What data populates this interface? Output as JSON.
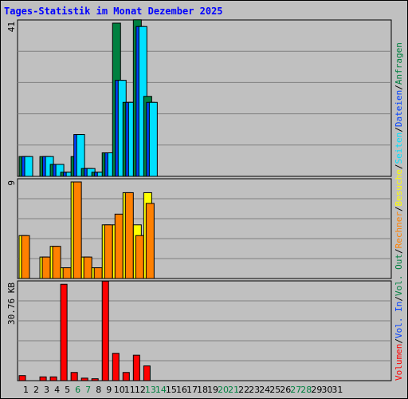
{
  "title": "Tages-Statistik im Monat Dezember 2025",
  "chart_data": [
    {
      "type": "bar",
      "panel": "anfragen-dateien-seiten",
      "ylabel": "41",
      "ymax": 41,
      "grid": true,
      "categories": [
        "1",
        "2",
        "3",
        "4",
        "5",
        "6",
        "7",
        "8",
        "9",
        "10",
        "11",
        "12",
        "13",
        "14",
        "15",
        "16",
        "17",
        "18",
        "19",
        "20",
        "21",
        "22",
        "23",
        "24",
        "25",
        "26",
        "27",
        "28",
        "29",
        "30",
        "31"
      ],
      "series": [
        {
          "name": "Anfragen",
          "color": "#008040",
          "values": [
            5.3,
            0,
            5.3,
            3.2,
            1.1,
            5.3,
            2.1,
            1.1,
            6.3,
            41,
            19.8,
            41.9,
            21.4,
            0,
            0,
            0,
            0,
            0,
            0,
            0,
            0,
            0,
            0,
            0,
            0,
            0,
            0,
            0,
            0,
            0,
            0
          ]
        },
        {
          "name": "Dateien",
          "color": "#0040ff",
          "values": [
            5.3,
            0,
            5.3,
            3.2,
            1.1,
            11.2,
            2.1,
            1.1,
            6.3,
            25.7,
            19.8,
            40.1,
            19.8,
            0,
            0,
            0,
            0,
            0,
            0,
            0,
            0,
            0,
            0,
            0,
            0,
            0,
            0,
            0,
            0,
            0,
            0
          ]
        },
        {
          "name": "Seiten",
          "color": "#00e0ff",
          "values": [
            5.3,
            0,
            5.3,
            3.2,
            1.1,
            11.2,
            2.1,
            1.1,
            6.3,
            25.7,
            19.8,
            40.1,
            19.8,
            0,
            0,
            0,
            0,
            0,
            0,
            0,
            0,
            0,
            0,
            0,
            0,
            0,
            0,
            0,
            0,
            0,
            0
          ]
        }
      ]
    },
    {
      "type": "bar",
      "panel": "besuche-rechner",
      "ylabel": "9",
      "ymax": 9,
      "grid": true,
      "series": [
        {
          "name": "Besuche",
          "color": "#ffff00",
          "values": [
            4,
            0,
            2,
            3,
            1,
            9,
            2,
            1,
            5,
            5,
            8,
            5,
            8,
            0,
            0,
            0,
            0,
            0,
            0,
            0,
            0,
            0,
            0,
            0,
            0,
            0,
            0,
            0,
            0,
            0,
            0
          ]
        },
        {
          "name": "Rechner",
          "color": "#ff8000",
          "values": [
            4,
            0,
            2,
            3,
            1,
            9,
            2,
            1,
            5,
            6,
            8,
            4,
            7,
            0,
            0,
            0,
            0,
            0,
            0,
            0,
            0,
            0,
            0,
            0,
            0,
            0,
            0,
            0,
            0,
            0,
            0
          ]
        }
      ]
    },
    {
      "type": "bar",
      "panel": "volumen",
      "ylabel": "30.76 KB",
      "ymax": 30.76,
      "grid": true,
      "series": [
        {
          "name": "Volumen",
          "color": "#ff0000",
          "values": [
            1.6,
            0,
            1.2,
            1.2,
            30.7,
            2.6,
            0.8,
            0.6,
            31.7,
            8.7,
            2.6,
            8.1,
            4.7,
            0,
            0,
            0,
            0,
            0,
            0,
            0,
            0,
            0,
            0,
            0,
            0,
            0,
            0,
            0,
            0,
            0,
            0
          ]
        }
      ]
    }
  ],
  "x_label_colors": {
    "weekday": "#000000",
    "weekend": "#008040"
  },
  "weekend_days": [
    "6",
    "7",
    "13",
    "14",
    "20",
    "21",
    "27",
    "28"
  ],
  "right_legend": [
    {
      "text": "Volumen",
      "color": "#ff0000"
    },
    {
      "text": "/",
      "color": "#000000"
    },
    {
      "text": "Vol. In",
      "color": "#0040ff"
    },
    {
      "text": "/",
      "color": "#000000"
    },
    {
      "text": "Vol. Out",
      "color": "#008040"
    },
    {
      "text": "/",
      "color": "#000000"
    },
    {
      "text": "Rechner",
      "color": "#ff8000"
    },
    {
      "text": "/",
      "color": "#000000"
    },
    {
      "text": "Besuche",
      "color": "#ffff00"
    },
    {
      "text": "/",
      "color": "#000000"
    },
    {
      "text": "Seiten",
      "color": "#00e0ff"
    },
    {
      "text": "/",
      "color": "#000000"
    },
    {
      "text": "Dateien",
      "color": "#0040ff"
    },
    {
      "text": "/",
      "color": "#000000"
    },
    {
      "text": "Anfragen",
      "color": "#008040"
    }
  ]
}
